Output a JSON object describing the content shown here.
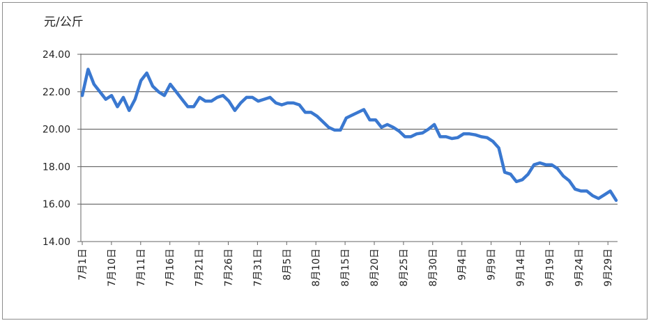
{
  "chart_data": {
    "type": "line",
    "title": "",
    "unit_label": "元/公斤",
    "xlabel": "",
    "ylabel": "元/公斤",
    "ylim": [
      14,
      24
    ],
    "yticks": [
      "14.00",
      "16.00",
      "18.00",
      "20.00",
      "22.00",
      "24.00"
    ],
    "grid": true,
    "legend": "none",
    "x_tick_labels": [
      "7月1日",
      "7月10日",
      "7月11日",
      "7月16日",
      "7月21日",
      "7月26日",
      "7月31日",
      "8月5日",
      "8月10日",
      "8月15日",
      "8月20日",
      "8月25日",
      "8月30日",
      "9月4日",
      "9月9日",
      "9月14日",
      "9月19日",
      "9月24日",
      "9月29日"
    ],
    "colors": {
      "line": "#3a78d0",
      "grid": "#4d4d4d",
      "axis": "#666666"
    },
    "series": [
      {
        "values": [
          21.8,
          23.2,
          22.4,
          22.0,
          21.6,
          21.8,
          21.2,
          21.7,
          21.0,
          21.6,
          22.6,
          23.0,
          22.3,
          22.0,
          21.8,
          22.4,
          22.0,
          21.6,
          21.2,
          21.2,
          21.7,
          21.5,
          21.5,
          21.7,
          21.8,
          21.5,
          21.0,
          21.4,
          21.7,
          21.7,
          21.5,
          21.6,
          21.7,
          21.4,
          21.3,
          21.4,
          21.4,
          21.3,
          20.9,
          20.9,
          20.7,
          20.4,
          20.1,
          19.95,
          19.95,
          20.6,
          20.75,
          20.9,
          21.05,
          20.5,
          20.5,
          20.1,
          20.25,
          20.1,
          19.9,
          19.6,
          19.6,
          19.75,
          19.8,
          20.0,
          20.25,
          19.6,
          19.6,
          19.5,
          19.55,
          19.75,
          19.75,
          19.7,
          19.6,
          19.55,
          19.35,
          19.0,
          17.7,
          17.6,
          17.2,
          17.3,
          17.6,
          18.1,
          18.2,
          18.1,
          18.1,
          17.9,
          17.5,
          17.25,
          16.8,
          16.7,
          16.7,
          16.45,
          16.3,
          16.5,
          16.7,
          16.2
        ]
      }
    ]
  }
}
